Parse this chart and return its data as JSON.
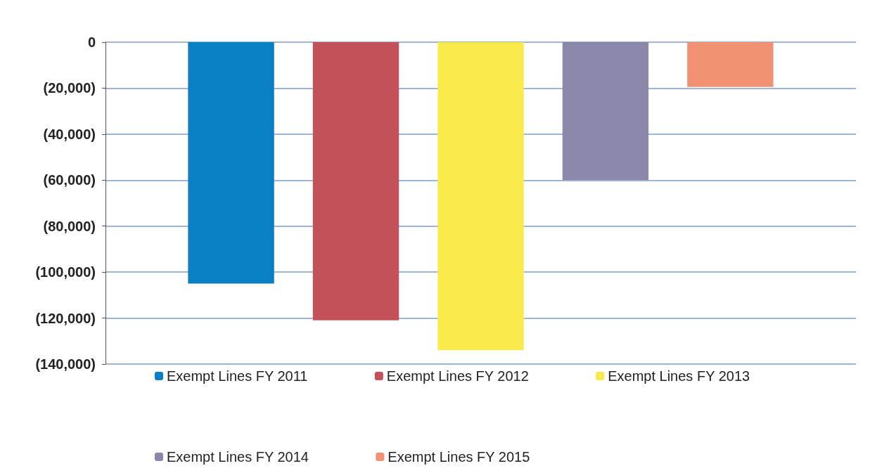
{
  "chart_data": {
    "type": "bar",
    "categories": [
      null
    ],
    "series": [
      {
        "name": "Exempt Lines FY 2011",
        "color": "#0b7fc4",
        "values": [
          -105000
        ]
      },
      {
        "name": "Exempt Lines FY 2012",
        "color": "#c4505a",
        "values": [
          -121000
        ]
      },
      {
        "name": "Exempt Lines FY 2013",
        "color": "#f7ea4a",
        "values": [
          -134000
        ]
      },
      {
        "name": "Exempt Lines FY 2014",
        "color": "#8a87a8",
        "values": [
          -60000
        ]
      },
      {
        "name": "Exempt Lines FY 2015",
        "color": "#ef9172",
        "values": [
          -19500
        ]
      }
    ],
    "ylim": [
      -140000,
      0
    ],
    "yticks": [
      {
        "value": 0,
        "label": "0"
      },
      {
        "value": -20000,
        "label": "(20,000)"
      },
      {
        "value": -40000,
        "label": "(40,000)"
      },
      {
        "value": -60000,
        "label": "(60,000)"
      },
      {
        "value": -80000,
        "label": "(80,000)"
      },
      {
        "value": -100000,
        "label": "(100,000)"
      },
      {
        "value": -120000,
        "label": "(120,000)"
      },
      {
        "value": -140000,
        "label": "(140,000)"
      }
    ],
    "grid": "y",
    "legend": "bottom"
  }
}
